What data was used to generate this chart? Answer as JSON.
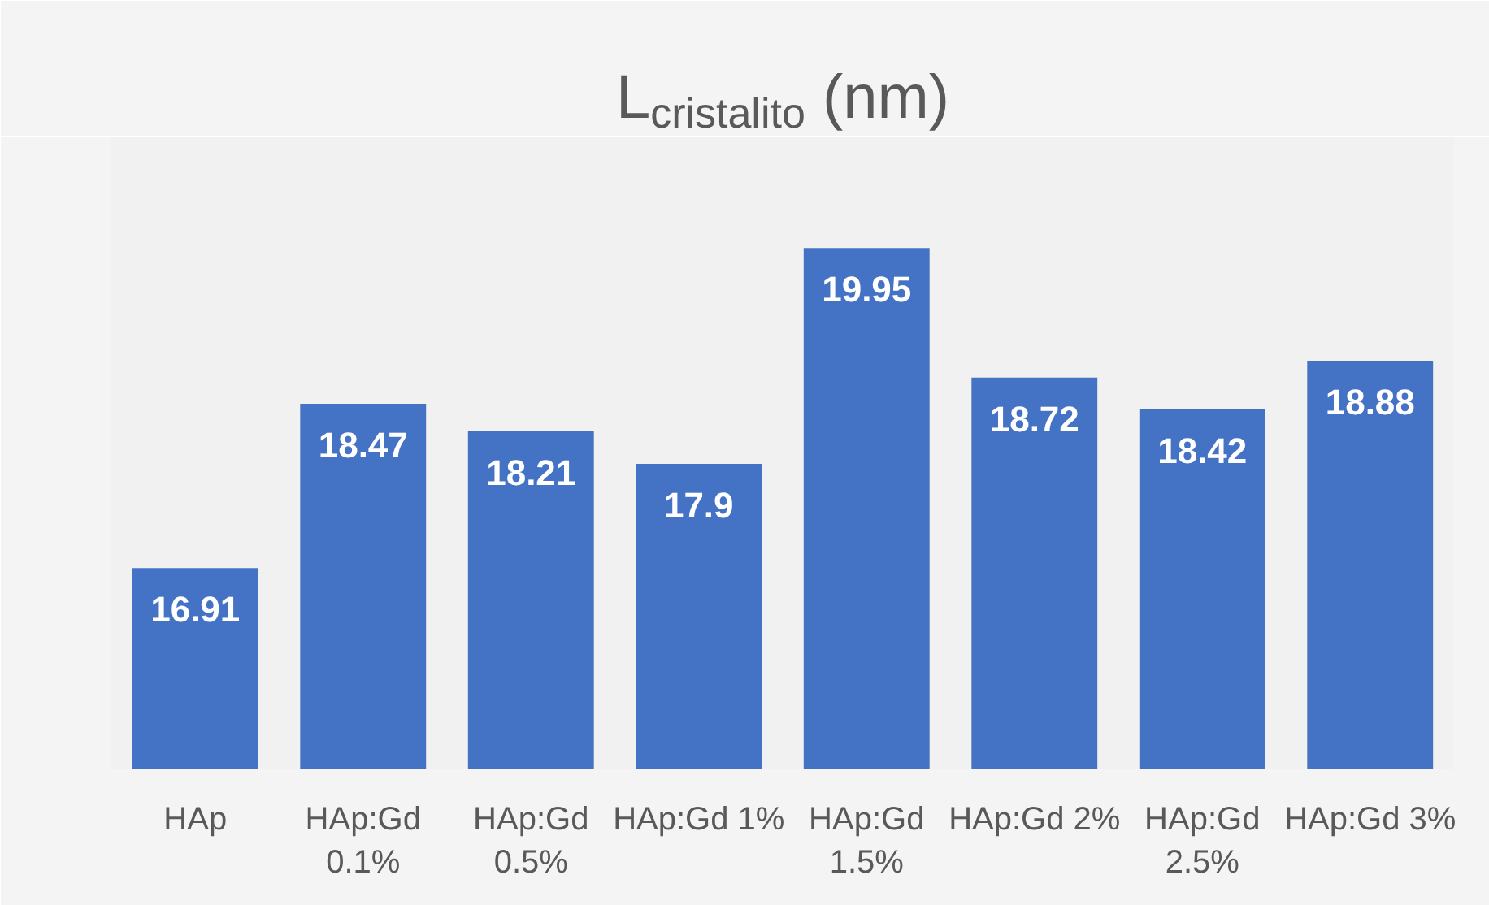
{
  "chart_data": {
    "type": "bar",
    "title": "L$_{cristalito}$ (nm)",
    "categories": [
      "HAp",
      "HAp:Gd 0.1%",
      "HAp:Gd 0.5%",
      "HAp:Gd 1%",
      "HAp:Gd 1.5%",
      "HAp:Gd 2%",
      "HAp:Gd 2.5%",
      "HAp:Gd 3%"
    ],
    "values": [
      16.91,
      18.47,
      18.21,
      17.9,
      19.95,
      18.72,
      18.42,
      18.88
    ],
    "color": "#4472c4",
    "ylim": [
      15,
      21
    ],
    "data_labels": true,
    "tick_labels": "x"
  }
}
